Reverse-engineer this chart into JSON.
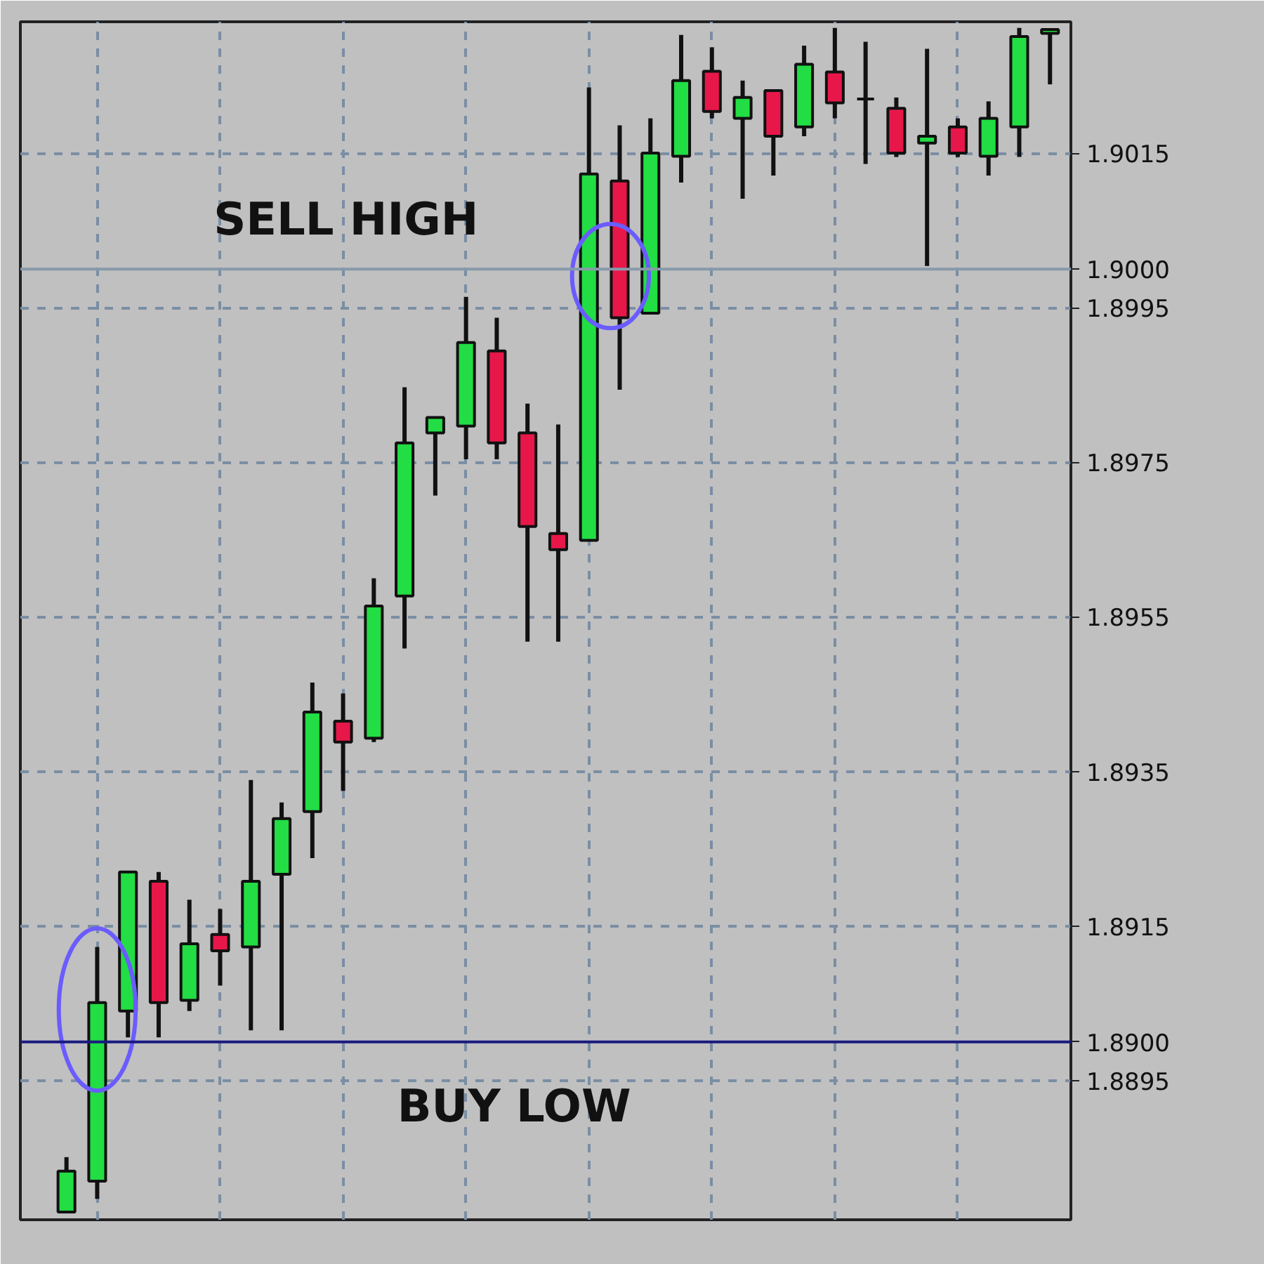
{
  "chart_data": {
    "type": "candlestick",
    "categories": [
      null,
      null,
      null,
      null,
      null,
      null,
      null,
      null,
      null,
      null,
      null,
      null,
      null,
      null,
      null,
      null,
      null,
      null,
      null,
      null,
      null,
      null,
      null,
      null,
      null,
      null,
      null,
      null,
      null,
      null,
      null,
      null,
      null
    ],
    "ohlc": [
      [
        1.8878,
        1.88851,
        1.8878,
        1.88833
      ],
      [
        1.8882,
        1.89123,
        1.88797,
        1.89051
      ],
      [
        1.8904,
        1.8922,
        1.89006,
        1.8922
      ],
      [
        1.89208,
        1.8922,
        1.89006,
        1.89051
      ],
      [
        1.89054,
        1.89184,
        1.8904,
        1.89127
      ],
      [
        1.89139,
        1.89172,
        1.89073,
        1.89118
      ],
      [
        1.89123,
        1.89339,
        1.89015,
        1.89208
      ],
      [
        1.89217,
        1.8931,
        1.89015,
        1.89289
      ],
      [
        1.89298,
        1.89465,
        1.89238,
        1.89427
      ],
      [
        1.89415,
        1.89451,
        1.89325,
        1.89388
      ],
      [
        1.89393,
        1.896,
        1.89388,
        1.89564
      ],
      [
        1.89577,
        1.89847,
        1.89509,
        1.89775
      ],
      [
        1.89788,
        1.89808,
        1.89707,
        1.89808
      ],
      [
        1.89797,
        1.89964,
        1.89754,
        1.89905
      ],
      [
        1.89894,
        1.89937,
        1.89754,
        1.89775
      ],
      [
        1.89788,
        1.89826,
        1.89518,
        1.89667
      ],
      [
        1.89658,
        1.89799,
        1.89518,
        1.89637
      ],
      [
        1.89649,
        1.90235,
        1.89649,
        1.90123
      ],
      [
        1.90114,
        1.90186,
        1.89844,
        1.89937
      ],
      [
        1.89943,
        1.90195,
        1.89943,
        1.9015
      ],
      [
        1.90146,
        1.90303,
        1.90112,
        1.90244
      ],
      [
        1.90256,
        1.90287,
        1.90195,
        1.90204
      ],
      [
        1.90195,
        1.90244,
        1.90091,
        1.90222
      ],
      [
        1.90231,
        1.90231,
        1.90121,
        1.90172
      ],
      [
        1.90184,
        1.90289,
        1.90172,
        1.90265
      ],
      [
        1.90255,
        1.90312,
        1.90195,
        1.90215
      ],
      [
        1.9022,
        1.90294,
        1.90136,
        1.9022
      ],
      [
        1.90208,
        1.90222,
        1.90145,
        1.9015
      ],
      [
        1.90163,
        1.90285,
        1.90004,
        1.90172
      ],
      [
        1.90184,
        1.90195,
        1.90145,
        1.9015
      ],
      [
        1.90146,
        1.90217,
        1.90121,
        1.90195
      ],
      [
        1.90184,
        1.90312,
        1.90145,
        1.90301
      ],
      [
        1.90305,
        1.9031,
        1.90239,
        1.9031
      ]
    ],
    "colors": [
      "#22dd44",
      "#22dd44",
      "#22dd44",
      "#e8174a",
      "#22dd44",
      "#e8174a",
      "#22dd44",
      "#22dd44",
      "#22dd44",
      "#e8174a",
      "#22dd44",
      "#22dd44",
      "#22dd44",
      "#22dd44",
      "#e8174a",
      "#e8174a",
      "#e8174a",
      "#22dd44",
      "#e8174a",
      "#22dd44",
      "#22dd44",
      "#e8174a",
      "#22dd44",
      "#e8174a",
      "#22dd44",
      "#e8174a",
      "#111111",
      "#e8174a",
      "#22dd44",
      "#e8174a",
      "#22dd44",
      "#22dd44",
      "#22dd44"
    ],
    "ylim": [
      1.8877,
      1.9032
    ],
    "yticks": [
      1.8895,
      1.8915,
      1.8935,
      1.8955,
      1.8975,
      1.8995,
      1.9015
    ],
    "ref_lines": [
      {
        "axis": "y",
        "value": 1.9,
        "label": "1.9000",
        "color": "#8899aa"
      },
      {
        "axis": "y",
        "value": 1.89,
        "label": "1.8900",
        "color": "#1a1a80"
      }
    ],
    "annotations": [
      "SELL HIGH",
      "BUY LOW"
    ],
    "grid": true
  }
}
